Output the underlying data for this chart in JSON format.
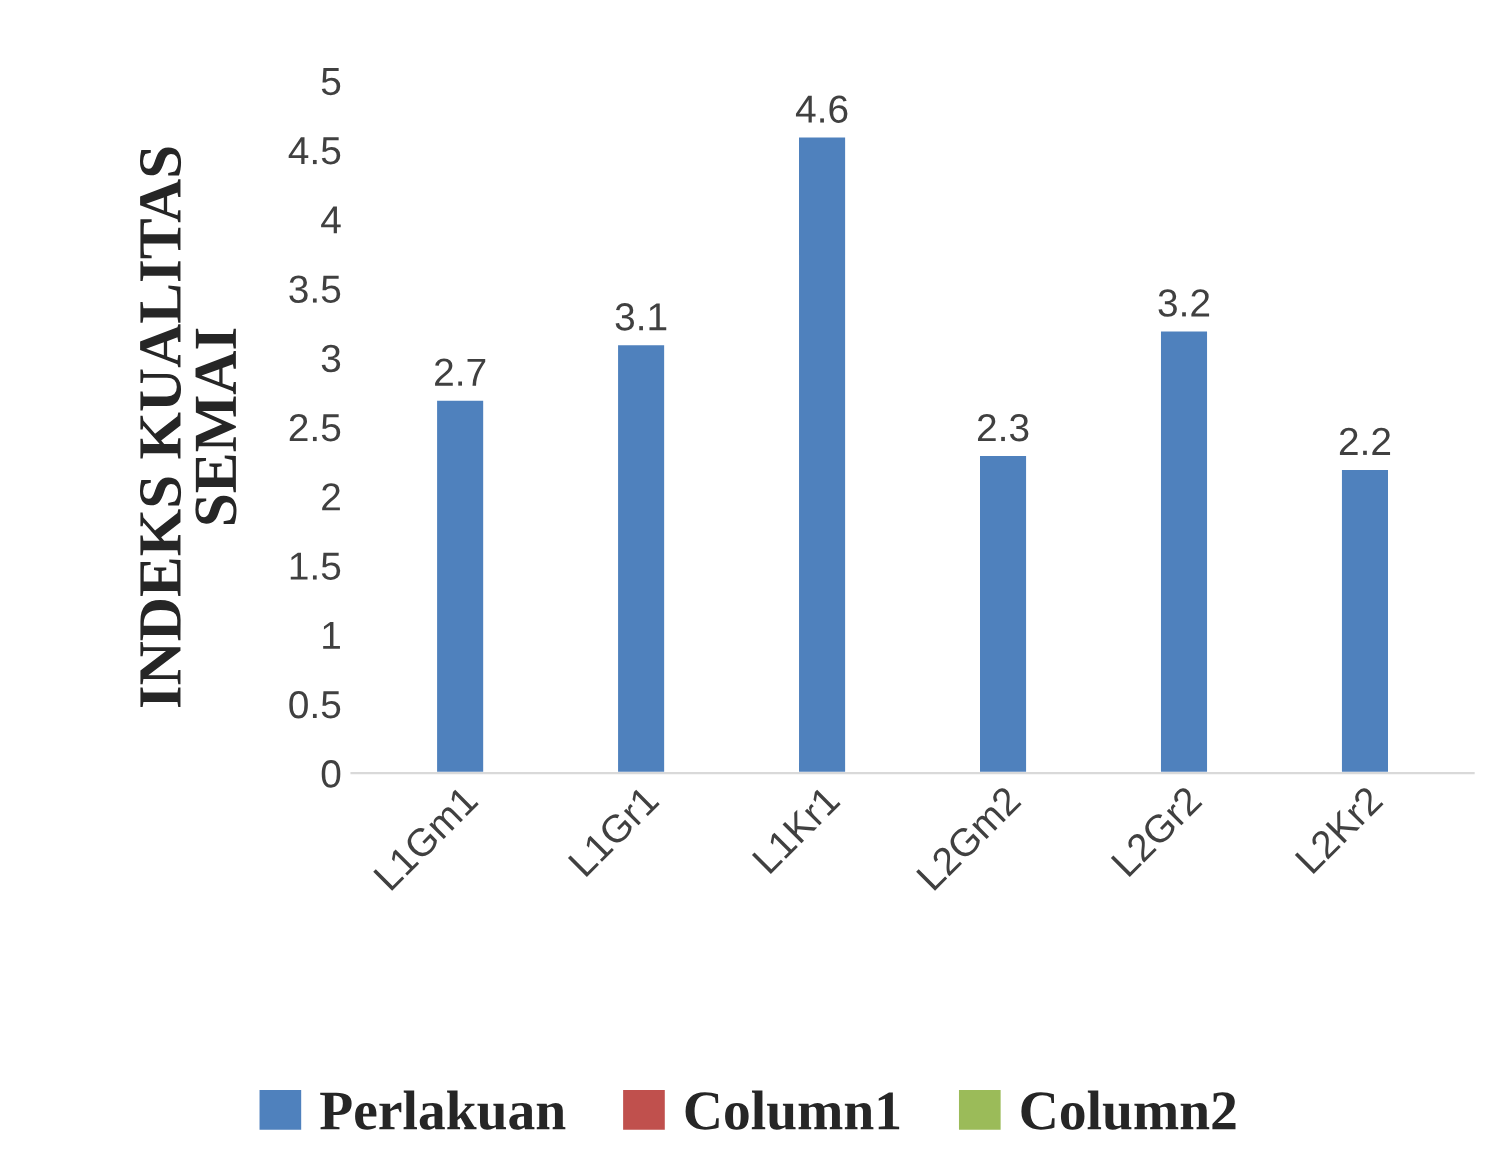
{
  "chart_data": {
    "type": "bar",
    "ylabel": "INDEKS KUALITAS\nSEMAI",
    "categories": [
      "L1Gm1",
      "L1Gr1",
      "L1Kr1",
      "L2Gm2",
      "L2Gr2",
      "L2Kr2"
    ],
    "series": [
      {
        "name": "Perlakuan",
        "color": "#4f81bd",
        "values": [
          2.7,
          3.1,
          4.6,
          2.3,
          3.2,
          2.2
        ]
      },
      {
        "name": "Column1",
        "color": "#c0504d",
        "values": [
          null,
          null,
          null,
          null,
          null,
          null
        ]
      },
      {
        "name": "Column2",
        "color": "#9bbb59",
        "values": [
          null,
          null,
          null,
          null,
          null,
          null
        ]
      }
    ],
    "ylim": [
      0,
      5
    ],
    "yticks": [
      0,
      0.5,
      1,
      1.5,
      2,
      2.5,
      3,
      3.5,
      4,
      4.5,
      5
    ],
    "data_labels": true,
    "grid": false,
    "legend": "bottom"
  }
}
